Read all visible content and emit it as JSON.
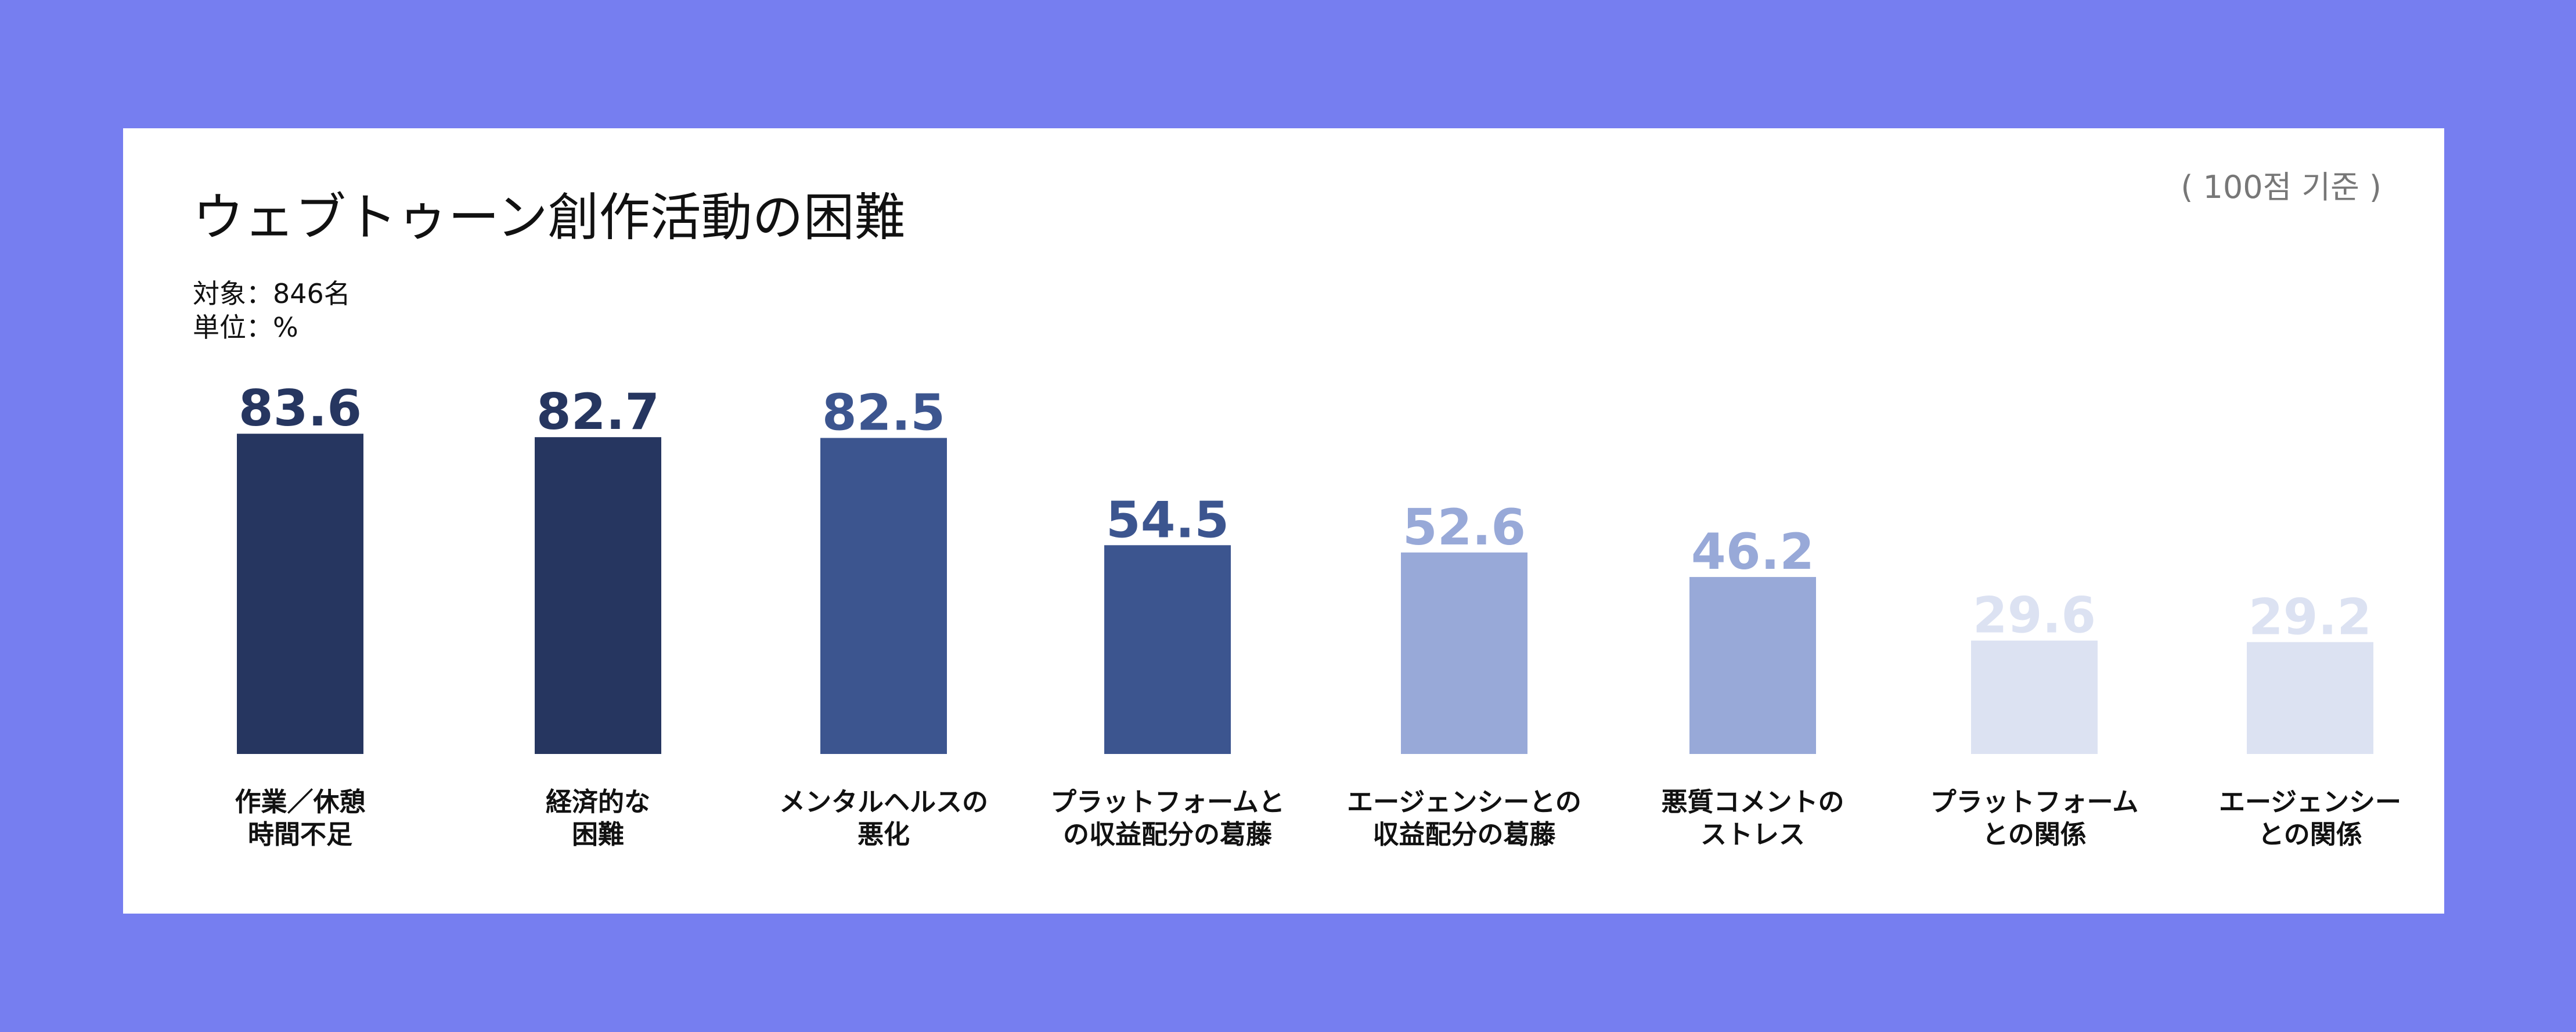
{
  "title": "ウェブトゥーン創作活動の困難",
  "meta": {
    "target": "対象：846名",
    "unit": "単位：%",
    "basis": "( 100점 기준 )"
  },
  "colors": {
    "background": "#767ef0",
    "dark": "#263660",
    "medium": "#3c558f",
    "light": "#98a9d8",
    "pale": "#dce2f2"
  },
  "chart_data": {
    "type": "bar",
    "categories": [
      [
        "作業／休憩",
        "時間不足"
      ],
      [
        "経済的な",
        "困難"
      ],
      [
        "メンタルヘルスの",
        "悪化"
      ],
      [
        "プラットフォームと",
        "の収益配分の葛藤"
      ],
      [
        "エージェンシーとの",
        "収益配分の葛藤"
      ],
      [
        "悪質コメントの",
        "ストレス"
      ],
      [
        "プラットフォーム",
        "との関係"
      ],
      [
        "エージェンシー",
        "との関係"
      ]
    ],
    "values": [
      83.6,
      82.7,
      82.5,
      54.5,
      52.6,
      46.2,
      29.6,
      29.2
    ],
    "value_labels": [
      "83.6",
      "82.7",
      "82.5",
      "54.5",
      "52.6",
      "46.2",
      "29.6",
      "29.2"
    ],
    "bar_colors": [
      "#263660",
      "#263660",
      "#3c558f",
      "#3c558f",
      "#98a9d8",
      "#98a9d8",
      "#dce2f2",
      "#dce2f2"
    ],
    "label_colors": [
      "#263660",
      "#263660",
      "#3c558f",
      "#3c558f",
      "#98a9d8",
      "#98a9d8",
      "#dce2f2",
      "#dce2f2"
    ],
    "ylim": [
      0,
      100
    ],
    "xlabel": "",
    "ylabel": "",
    "grid": false,
    "legend": "none"
  }
}
